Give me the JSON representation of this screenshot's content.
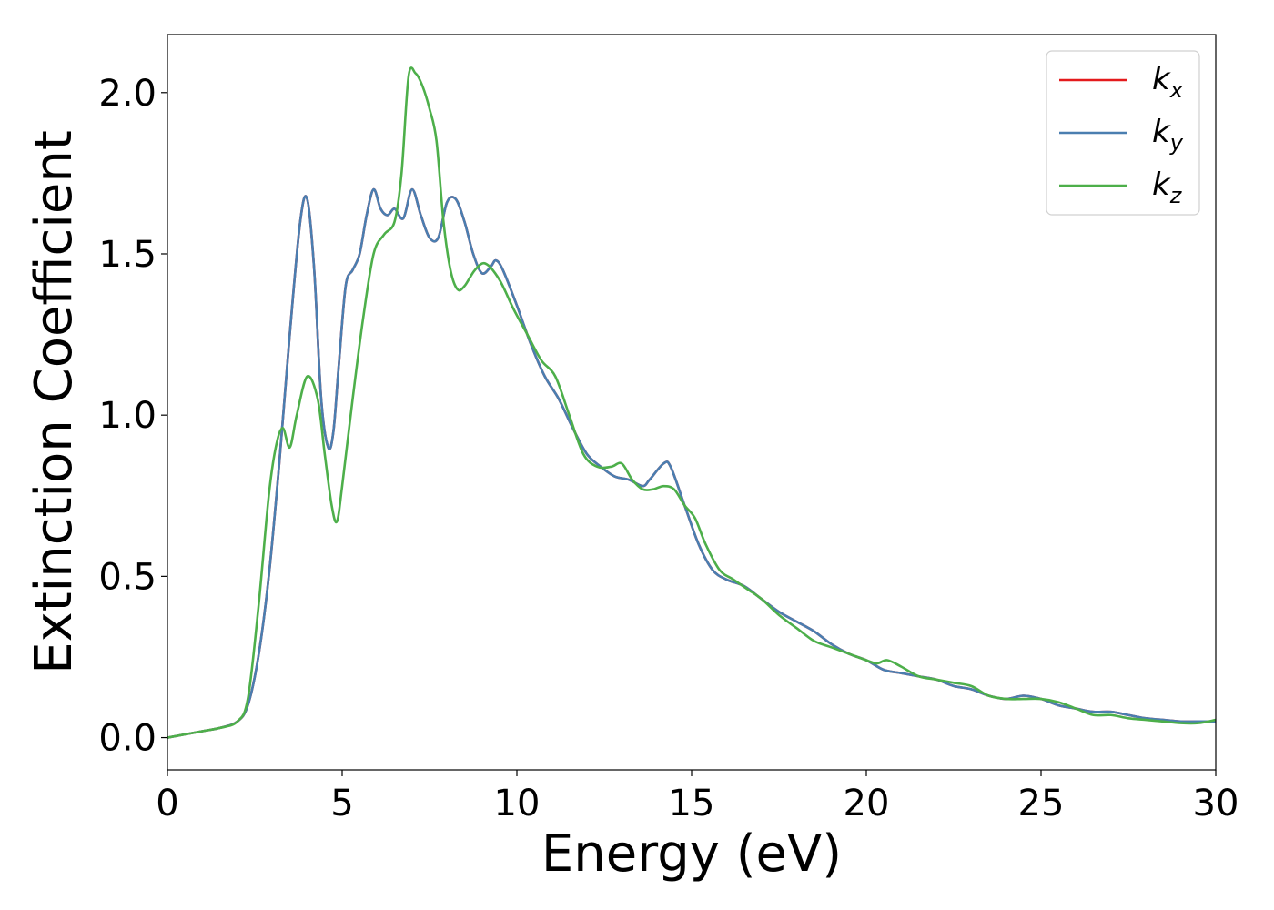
{
  "chart_data": {
    "type": "line",
    "title": "",
    "xlabel": "Energy (eV)",
    "ylabel": "Extinction Coefficient",
    "xlim": [
      0,
      30
    ],
    "ylim": [
      -0.1,
      2.18
    ],
    "xticks": [
      0,
      5,
      10,
      15,
      20,
      25,
      30
    ],
    "xtick_labels": [
      "0",
      "5",
      "10",
      "15",
      "20",
      "25",
      "30"
    ],
    "yticks": [
      0.0,
      0.5,
      1.0,
      1.5,
      2.0
    ],
    "ytick_labels": [
      "0.0",
      "0.5",
      "1.0",
      "1.5",
      "2.0"
    ],
    "grid": false,
    "legend_position": "top-right",
    "series": [
      {
        "name": "k_x",
        "label_base": "k",
        "label_sub": "x",
        "color": "#e41a1c",
        "x": [
          0,
          1,
          1.5,
          2.0,
          2.3,
          2.6,
          2.9,
          3.2,
          3.5,
          3.8,
          4.0,
          4.2,
          4.4,
          4.6,
          4.75,
          4.9,
          5.1,
          5.3,
          5.5,
          5.7,
          5.9,
          6.1,
          6.3,
          6.5,
          6.75,
          7.0,
          7.25,
          7.5,
          7.75,
          8.0,
          8.25,
          8.5,
          8.75,
          9.0,
          9.25,
          9.4,
          9.6,
          10.0,
          10.4,
          10.8,
          11.2,
          11.6,
          12.0,
          12.4,
          12.8,
          13.2,
          13.6,
          13.8,
          14.2,
          14.4,
          14.8,
          15.2,
          15.6,
          16.0,
          16.5,
          17.0,
          17.5,
          18.0,
          18.5,
          19.0,
          19.5,
          20.0,
          20.5,
          21.0,
          21.5,
          22.0,
          22.5,
          23.0,
          23.5,
          24.0,
          24.5,
          25.0,
          25.5,
          26.0,
          26.5,
          27.0,
          27.5,
          28.0,
          28.5,
          29.0,
          29.5,
          30.0
        ],
        "y": [
          0.0,
          0.02,
          0.03,
          0.05,
          0.1,
          0.25,
          0.5,
          0.85,
          1.25,
          1.6,
          1.67,
          1.45,
          1.05,
          0.9,
          0.95,
          1.15,
          1.4,
          1.45,
          1.5,
          1.62,
          1.7,
          1.64,
          1.62,
          1.64,
          1.61,
          1.7,
          1.62,
          1.55,
          1.55,
          1.66,
          1.67,
          1.6,
          1.5,
          1.44,
          1.46,
          1.48,
          1.45,
          1.34,
          1.22,
          1.12,
          1.05,
          0.96,
          0.88,
          0.84,
          0.81,
          0.8,
          0.78,
          0.8,
          0.85,
          0.84,
          0.72,
          0.6,
          0.52,
          0.49,
          0.47,
          0.43,
          0.39,
          0.36,
          0.33,
          0.29,
          0.26,
          0.24,
          0.21,
          0.2,
          0.19,
          0.18,
          0.16,
          0.15,
          0.13,
          0.12,
          0.13,
          0.12,
          0.1,
          0.09,
          0.08,
          0.08,
          0.07,
          0.06,
          0.055,
          0.05,
          0.05,
          0.05
        ]
      },
      {
        "name": "k_y",
        "label_base": "k",
        "label_sub": "y",
        "color": "#4a7eb0",
        "x": [
          0,
          1,
          1.5,
          2.0,
          2.3,
          2.6,
          2.9,
          3.2,
          3.5,
          3.8,
          4.0,
          4.2,
          4.4,
          4.6,
          4.75,
          4.9,
          5.1,
          5.3,
          5.5,
          5.7,
          5.9,
          6.1,
          6.3,
          6.5,
          6.75,
          7.0,
          7.25,
          7.5,
          7.75,
          8.0,
          8.25,
          8.5,
          8.75,
          9.0,
          9.25,
          9.4,
          9.6,
          10.0,
          10.4,
          10.8,
          11.2,
          11.6,
          12.0,
          12.4,
          12.8,
          13.2,
          13.6,
          13.8,
          14.2,
          14.4,
          14.8,
          15.2,
          15.6,
          16.0,
          16.5,
          17.0,
          17.5,
          18.0,
          18.5,
          19.0,
          19.5,
          20.0,
          20.5,
          21.0,
          21.5,
          22.0,
          22.5,
          23.0,
          23.5,
          24.0,
          24.5,
          25.0,
          25.5,
          26.0,
          26.5,
          27.0,
          27.5,
          28.0,
          28.5,
          29.0,
          29.5,
          30.0
        ],
        "y": [
          0.0,
          0.02,
          0.03,
          0.05,
          0.1,
          0.25,
          0.5,
          0.85,
          1.25,
          1.6,
          1.67,
          1.45,
          1.05,
          0.9,
          0.95,
          1.15,
          1.4,
          1.45,
          1.5,
          1.62,
          1.7,
          1.64,
          1.62,
          1.64,
          1.61,
          1.7,
          1.62,
          1.55,
          1.55,
          1.66,
          1.67,
          1.6,
          1.5,
          1.44,
          1.46,
          1.48,
          1.45,
          1.34,
          1.22,
          1.12,
          1.05,
          0.96,
          0.88,
          0.84,
          0.81,
          0.8,
          0.78,
          0.8,
          0.85,
          0.84,
          0.72,
          0.6,
          0.52,
          0.49,
          0.47,
          0.43,
          0.39,
          0.36,
          0.33,
          0.29,
          0.26,
          0.24,
          0.21,
          0.2,
          0.19,
          0.18,
          0.16,
          0.15,
          0.13,
          0.12,
          0.13,
          0.12,
          0.1,
          0.09,
          0.08,
          0.08,
          0.07,
          0.06,
          0.055,
          0.05,
          0.05,
          0.05
        ]
      },
      {
        "name": "k_z",
        "label_base": "k",
        "label_sub": "z",
        "color": "#4daf4a",
        "x": [
          0,
          1,
          1.5,
          2.0,
          2.3,
          2.6,
          2.9,
          3.1,
          3.3,
          3.5,
          3.7,
          4.0,
          4.3,
          4.5,
          4.7,
          4.85,
          5.0,
          5.3,
          5.6,
          5.9,
          6.2,
          6.5,
          6.7,
          6.9,
          7.1,
          7.3,
          7.5,
          7.7,
          7.9,
          8.1,
          8.3,
          8.5,
          8.8,
          9.1,
          9.5,
          9.9,
          10.3,
          10.7,
          11.1,
          11.5,
          11.9,
          12.3,
          12.7,
          13.0,
          13.3,
          13.6,
          13.9,
          14.2,
          14.5,
          14.8,
          15.1,
          15.4,
          15.8,
          16.2,
          16.6,
          17.0,
          17.5,
          18.0,
          18.5,
          19.0,
          19.5,
          20.0,
          20.3,
          20.6,
          21.0,
          21.5,
          22.0,
          22.5,
          23.0,
          23.5,
          24.0,
          24.5,
          25.0,
          25.5,
          26.0,
          26.5,
          27.0,
          27.5,
          28.0,
          28.5,
          29.0,
          29.5,
          30.0
        ],
        "y": [
          0.0,
          0.02,
          0.03,
          0.05,
          0.12,
          0.4,
          0.75,
          0.9,
          0.96,
          0.9,
          1.0,
          1.12,
          1.05,
          0.88,
          0.72,
          0.67,
          0.78,
          1.05,
          1.3,
          1.5,
          1.56,
          1.6,
          1.75,
          2.05,
          2.06,
          2.02,
          1.95,
          1.85,
          1.6,
          1.45,
          1.39,
          1.4,
          1.45,
          1.47,
          1.42,
          1.33,
          1.25,
          1.17,
          1.12,
          1.0,
          0.88,
          0.84,
          0.84,
          0.85,
          0.8,
          0.77,
          0.77,
          0.78,
          0.77,
          0.72,
          0.68,
          0.6,
          0.52,
          0.49,
          0.46,
          0.43,
          0.38,
          0.34,
          0.3,
          0.28,
          0.26,
          0.24,
          0.23,
          0.24,
          0.22,
          0.19,
          0.18,
          0.17,
          0.16,
          0.13,
          0.12,
          0.12,
          0.12,
          0.11,
          0.09,
          0.07,
          0.07,
          0.06,
          0.055,
          0.05,
          0.045,
          0.045,
          0.055
        ]
      }
    ]
  }
}
